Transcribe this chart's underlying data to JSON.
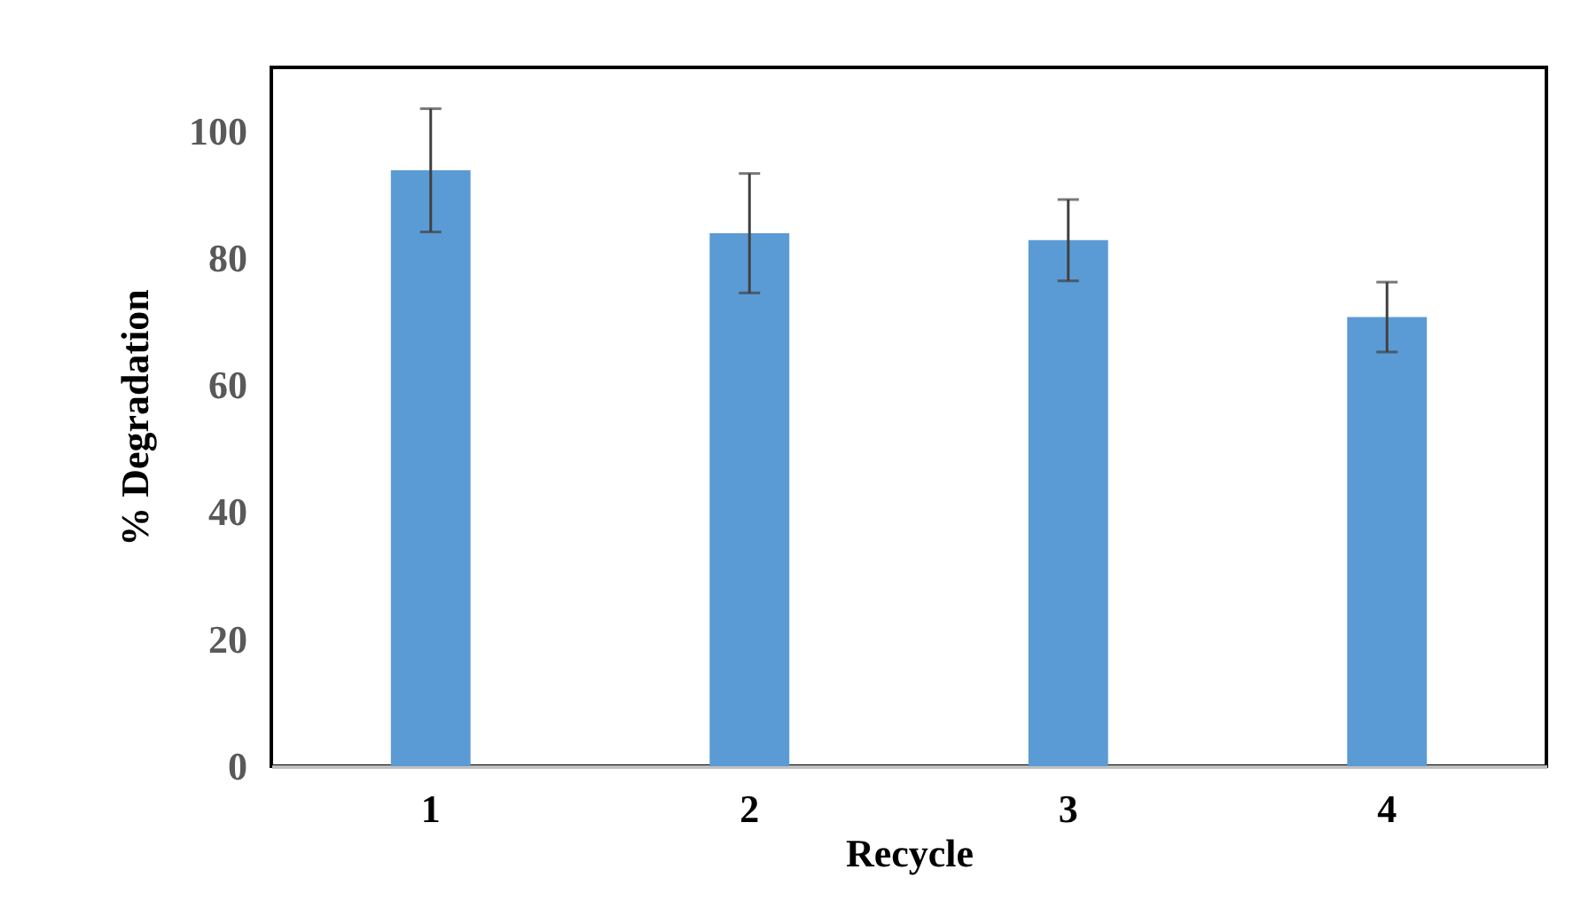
{
  "chart_data": {
    "type": "bar",
    "xlabel": "Recycle",
    "ylabel": "% Degradation",
    "categories": [
      "1",
      "2",
      "3",
      "4"
    ],
    "values": [
      93.8,
      83.9,
      82.8,
      70.7
    ],
    "errors": [
      9.7,
      9.4,
      6.4,
      5.5
    ],
    "color": "#5b9bd5",
    "ylim": [
      0,
      110
    ],
    "yticks": [
      0,
      20,
      40,
      60,
      80,
      100
    ],
    "grid": false
  }
}
